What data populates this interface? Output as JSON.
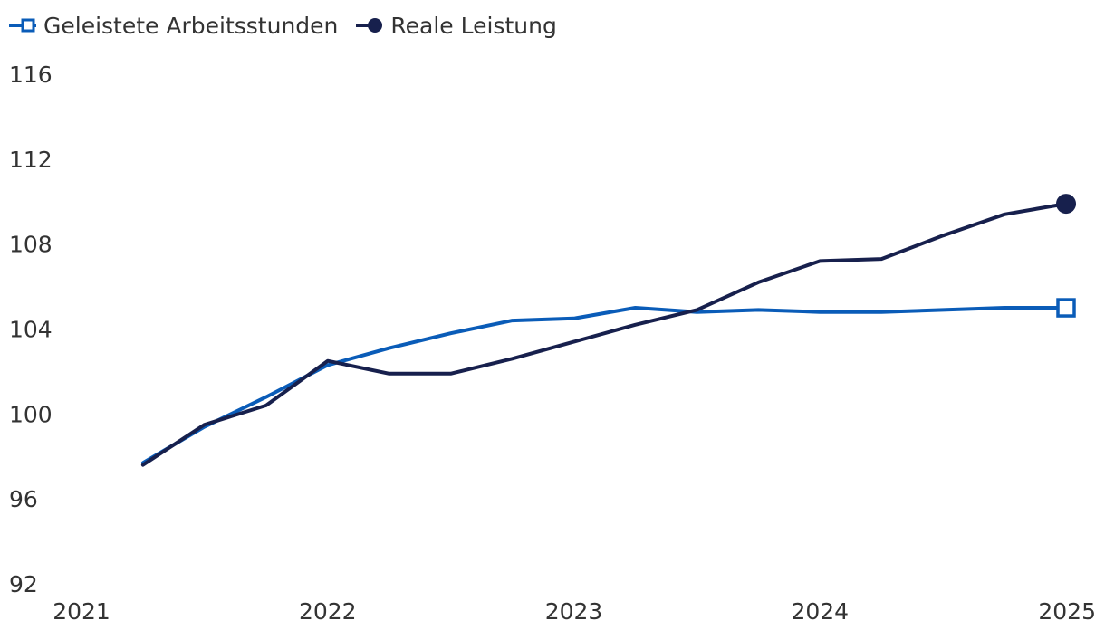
{
  "legend": {
    "hours_label": "Geleistete Arbeitsstunden",
    "output_label": "Reale Leistung"
  },
  "colors": {
    "hours": "#0a5cb8",
    "output": "#17204d",
    "text": "#333333"
  },
  "chart_data": {
    "type": "line",
    "title": "",
    "xlabel": "",
    "ylabel": "",
    "xlim": [
      2021,
      2025
    ],
    "ylim": [
      92,
      116
    ],
    "x_ticks": [
      "2021",
      "2022",
      "2023",
      "2024",
      "2025"
    ],
    "y_ticks": [
      "116",
      "112",
      "108",
      "104",
      "100",
      "96",
      "92"
    ],
    "grid": false,
    "legend_position": "top-left",
    "x": [
      2021.25,
      2021.5,
      2021.75,
      2022.0,
      2022.25,
      2022.5,
      2022.75,
      2023.0,
      2023.25,
      2023.5,
      2023.75,
      2024.0,
      2024.25,
      2024.5,
      2024.75,
      2025.0
    ],
    "series": [
      {
        "name": "Geleistete Arbeitsstunden",
        "marker": "square-open",
        "values": [
          97.7,
          99.4,
          100.8,
          102.3,
          103.1,
          103.8,
          104.4,
          104.5,
          105.0,
          104.8,
          104.9,
          104.8,
          104.8,
          104.9,
          105.0,
          105.0
        ]
      },
      {
        "name": "Reale Leistung",
        "marker": "circle-filled",
        "values": [
          97.6,
          99.5,
          100.4,
          102.5,
          101.9,
          101.9,
          102.6,
          103.4,
          104.2,
          104.9,
          106.2,
          107.2,
          107.3,
          108.4,
          109.4,
          109.9
        ]
      }
    ]
  }
}
